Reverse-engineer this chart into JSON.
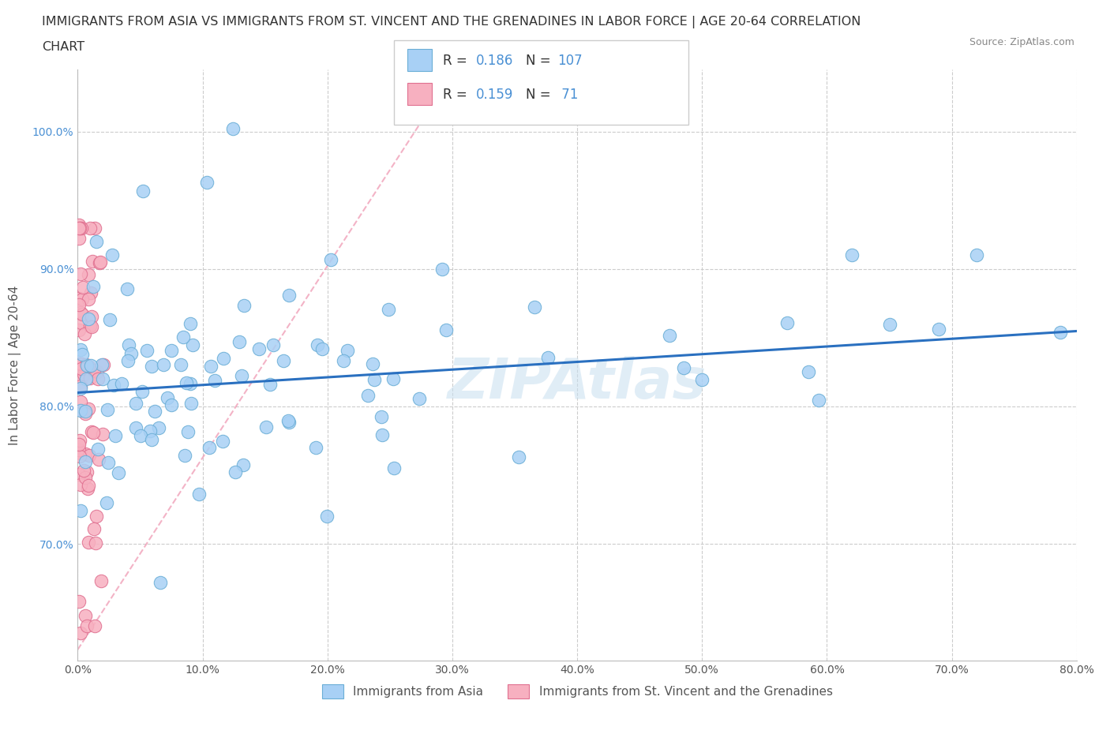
{
  "title_line1": "IMMIGRANTS FROM ASIA VS IMMIGRANTS FROM ST. VINCENT AND THE GRENADINES IN LABOR FORCE | AGE 20-64 CORRELATION",
  "title_line2": "CHART",
  "source_text": "Source: ZipAtlas.com",
  "ylabel": "In Labor Force | Age 20-64",
  "x_min": 0.0,
  "x_max": 0.8,
  "y_min": 0.615,
  "y_max": 1.045,
  "y_ticks": [
    0.7,
    0.8,
    0.9,
    1.0
  ],
  "y_tick_labels": [
    "70.0%",
    "80.0%",
    "90.0%",
    "100.0%"
  ],
  "x_ticks": [
    0.0,
    0.1,
    0.2,
    0.3,
    0.4,
    0.5,
    0.6,
    0.7,
    0.8
  ],
  "x_tick_labels": [
    "0.0%",
    "10.0%",
    "20.0%",
    "30.0%",
    "40.0%",
    "50.0%",
    "60.0%",
    "70.0%",
    "80.0%"
  ],
  "asia_fill": "#a8d0f5",
  "asia_edge": "#6aaed6",
  "svg_fill": "#f7b0c0",
  "svg_edge": "#e07090",
  "trend_asia_color": "#2a70c0",
  "trend_svg_color": "#f0a0b8",
  "R_asia": 0.186,
  "N_asia": 107,
  "R_svg": 0.159,
  "N_svg": 71,
  "legend_val_color": "#4a90d4",
  "watermark_color": "#c8dff0",
  "title_fontsize": 11.5,
  "tick_fontsize": 10,
  "legend_fontsize": 12,
  "ytick_color": "#4a90d4",
  "xtick_color": "#555555",
  "ylabel_color": "#555555"
}
